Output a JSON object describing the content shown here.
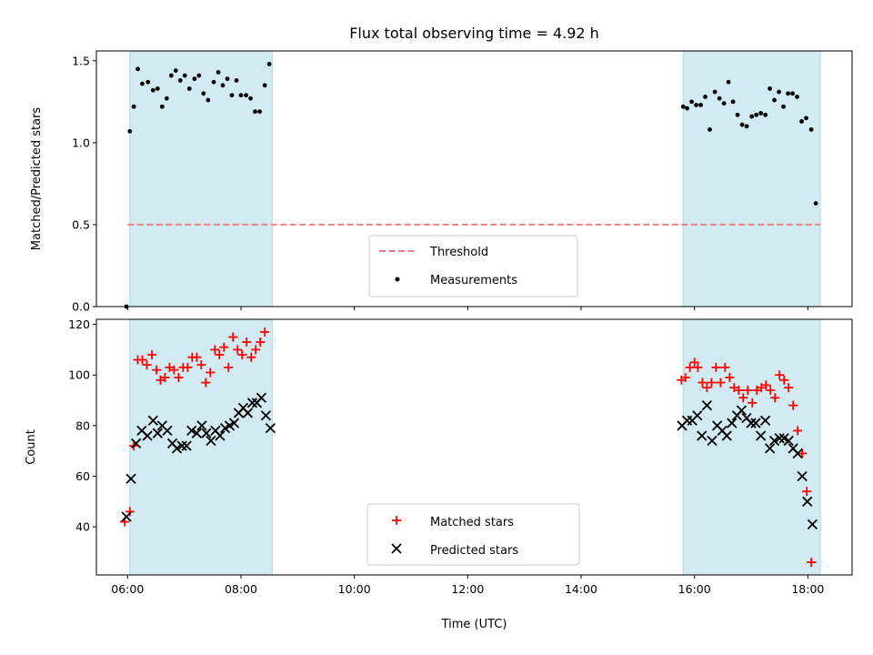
{
  "chart_data": [
    {
      "type": "scatter",
      "title": "Flux total observing time = 4.92 h",
      "ylabel": "Matched/Predicted stars",
      "xlabel": "",
      "x_unit": "hours (UTC)",
      "xlim": [
        5.45,
        18.78
      ],
      "ylim": [
        0,
        1.56
      ],
      "yticks": [
        0.0,
        0.5,
        1.0,
        1.5
      ],
      "ytick_labels": [
        "0.0",
        "0.5",
        "1.0",
        "1.5"
      ],
      "shaded_intervals": [
        [
          6.04,
          8.55
        ],
        [
          15.8,
          18.22
        ]
      ],
      "shade_color": "#add8e6",
      "threshold": {
        "name": "Threshold",
        "value": 0.5,
        "x_range": [
          6.0,
          18.22
        ],
        "color": "#f08080",
        "style": "dashed"
      },
      "series": [
        {
          "name": "Measurements",
          "color": "#000000",
          "marker": "dot",
          "points": [
            [
              5.98,
              0.0
            ],
            [
              6.04,
              1.07
            ],
            [
              6.11,
              1.22
            ],
            [
              6.18,
              1.45
            ],
            [
              6.26,
              1.36
            ],
            [
              6.36,
              1.37
            ],
            [
              6.45,
              1.32
            ],
            [
              6.53,
              1.33
            ],
            [
              6.61,
              1.22
            ],
            [
              6.69,
              1.27
            ],
            [
              6.77,
              1.41
            ],
            [
              6.85,
              1.44
            ],
            [
              6.93,
              1.38
            ],
            [
              7.01,
              1.41
            ],
            [
              7.09,
              1.33
            ],
            [
              7.18,
              1.39
            ],
            [
              7.26,
              1.41
            ],
            [
              7.34,
              1.3
            ],
            [
              7.42,
              1.26
            ],
            [
              7.52,
              1.37
            ],
            [
              7.6,
              1.43
            ],
            [
              7.68,
              1.35
            ],
            [
              7.76,
              1.39
            ],
            [
              7.84,
              1.29
            ],
            [
              7.92,
              1.38
            ],
            [
              8.0,
              1.29
            ],
            [
              8.09,
              1.29
            ],
            [
              8.17,
              1.27
            ],
            [
              8.25,
              1.19
            ],
            [
              8.33,
              1.19
            ],
            [
              8.42,
              1.35
            ],
            [
              8.5,
              1.48
            ],
            [
              15.8,
              1.22
            ],
            [
              15.87,
              1.21
            ],
            [
              15.95,
              1.25
            ],
            [
              16.03,
              1.23
            ],
            [
              16.11,
              1.23
            ],
            [
              16.19,
              1.28
            ],
            [
              16.27,
              1.08
            ],
            [
              16.36,
              1.31
            ],
            [
              16.44,
              1.27
            ],
            [
              16.52,
              1.24
            ],
            [
              16.6,
              1.37
            ],
            [
              16.68,
              1.25
            ],
            [
              16.76,
              1.17
            ],
            [
              16.84,
              1.11
            ],
            [
              16.92,
              1.1
            ],
            [
              17.01,
              1.16
            ],
            [
              17.09,
              1.17
            ],
            [
              17.17,
              1.18
            ],
            [
              17.25,
              1.17
            ],
            [
              17.33,
              1.33
            ],
            [
              17.41,
              1.26
            ],
            [
              17.49,
              1.31
            ],
            [
              17.57,
              1.22
            ],
            [
              17.65,
              1.3
            ],
            [
              17.73,
              1.3
            ],
            [
              17.81,
              1.28
            ],
            [
              17.89,
              1.13
            ],
            [
              17.97,
              1.15
            ],
            [
              18.06,
              1.08
            ],
            [
              18.14,
              0.63
            ]
          ]
        }
      ],
      "legend": {
        "placement": "lower center",
        "entries": [
          "Threshold",
          "Measurements"
        ]
      }
    },
    {
      "type": "scatter",
      "title": "",
      "ylabel": "Count",
      "xlabel": "Time (UTC)",
      "x_unit": "hours (UTC)",
      "xlim": [
        5.45,
        18.78
      ],
      "ylim": [
        21,
        122
      ],
      "yticks": [
        40,
        60,
        80,
        100,
        120
      ],
      "ytick_labels": [
        "40",
        "60",
        "80",
        "100",
        "120"
      ],
      "xticks": [
        6,
        8,
        10,
        12,
        14,
        16,
        18
      ],
      "xtick_labels": [
        "06:00",
        "08:00",
        "10:00",
        "12:00",
        "14:00",
        "16:00",
        "18:00"
      ],
      "shaded_intervals": [
        [
          6.04,
          8.55
        ],
        [
          15.8,
          18.22
        ]
      ],
      "shade_color": "#add8e6",
      "series": [
        {
          "name": "Matched stars",
          "color": "#ff0000",
          "marker": "plus",
          "points": [
            [
              5.95,
              42
            ],
            [
              6.04,
              46
            ],
            [
              6.11,
              72
            ],
            [
              6.18,
              106
            ],
            [
              6.26,
              106
            ],
            [
              6.34,
              104
            ],
            [
              6.43,
              108
            ],
            [
              6.51,
              102
            ],
            [
              6.58,
              98
            ],
            [
              6.66,
              99
            ],
            [
              6.74,
              103
            ],
            [
              6.82,
              102
            ],
            [
              6.9,
              99
            ],
            [
              6.98,
              103
            ],
            [
              7.06,
              103
            ],
            [
              7.14,
              107
            ],
            [
              7.22,
              107
            ],
            [
              7.3,
              104
            ],
            [
              7.38,
              97
            ],
            [
              7.46,
              101
            ],
            [
              7.54,
              110
            ],
            [
              7.62,
              108
            ],
            [
              7.7,
              111
            ],
            [
              7.78,
              103
            ],
            [
              7.86,
              115
            ],
            [
              7.94,
              110
            ],
            [
              8.02,
              108
            ],
            [
              8.1,
              113
            ],
            [
              8.18,
              107
            ],
            [
              8.26,
              110
            ],
            [
              8.34,
              113
            ],
            [
              8.42,
              117
            ],
            [
              15.77,
              98
            ],
            [
              15.84,
              99
            ],
            [
              15.92,
              103
            ],
            [
              16.0,
              105
            ],
            [
              16.06,
              103
            ],
            [
              16.14,
              97
            ],
            [
              16.22,
              95
            ],
            [
              16.3,
              97
            ],
            [
              16.38,
              103
            ],
            [
              16.46,
              97
            ],
            [
              16.54,
              103
            ],
            [
              16.62,
              99
            ],
            [
              16.7,
              95
            ],
            [
              16.78,
              94
            ],
            [
              16.86,
              91
            ],
            [
              16.94,
              94
            ],
            [
              17.02,
              89
            ],
            [
              17.1,
              94
            ],
            [
              17.18,
              95
            ],
            [
              17.26,
              96
            ],
            [
              17.34,
              94
            ],
            [
              17.42,
              91
            ],
            [
              17.5,
              100
            ],
            [
              17.58,
              98
            ],
            [
              17.66,
              95
            ],
            [
              17.74,
              88
            ],
            [
              17.82,
              78
            ],
            [
              17.9,
              69
            ],
            [
              17.98,
              54
            ],
            [
              18.06,
              26
            ]
          ]
        },
        {
          "name": "Predicted stars",
          "color": "#000000",
          "marker": "x",
          "points": [
            [
              5.98,
              44
            ],
            [
              6.06,
              59
            ],
            [
              6.15,
              73
            ],
            [
              6.25,
              78
            ],
            [
              6.35,
              76
            ],
            [
              6.45,
              82
            ],
            [
              6.53,
              77
            ],
            [
              6.61,
              80
            ],
            [
              6.7,
              78
            ],
            [
              6.79,
              73
            ],
            [
              6.87,
              71
            ],
            [
              6.96,
              72
            ],
            [
              7.04,
              72
            ],
            [
              7.13,
              78
            ],
            [
              7.22,
              77
            ],
            [
              7.31,
              80
            ],
            [
              7.39,
              77
            ],
            [
              7.47,
              74
            ],
            [
              7.55,
              78
            ],
            [
              7.63,
              76
            ],
            [
              7.72,
              79
            ],
            [
              7.8,
              80
            ],
            [
              7.88,
              81
            ],
            [
              7.96,
              85
            ],
            [
              8.04,
              87
            ],
            [
              8.12,
              85
            ],
            [
              8.2,
              89
            ],
            [
              8.28,
              89
            ],
            [
              8.36,
              91
            ],
            [
              8.44,
              84
            ],
            [
              8.52,
              79
            ],
            [
              15.78,
              80
            ],
            [
              15.87,
              82
            ],
            [
              15.96,
              82
            ],
            [
              16.05,
              84
            ],
            [
              16.13,
              76
            ],
            [
              16.22,
              88
            ],
            [
              16.31,
              74
            ],
            [
              16.4,
              80
            ],
            [
              16.49,
              78
            ],
            [
              16.57,
              76
            ],
            [
              16.66,
              81
            ],
            [
              16.75,
              84
            ],
            [
              16.83,
              86
            ],
            [
              16.92,
              83
            ],
            [
              17.0,
              81
            ],
            [
              17.08,
              81
            ],
            [
              17.17,
              76
            ],
            [
              17.25,
              82
            ],
            [
              17.33,
              71
            ],
            [
              17.41,
              74
            ],
            [
              17.5,
              75
            ],
            [
              17.58,
              75
            ],
            [
              17.66,
              74
            ],
            [
              17.74,
              71
            ],
            [
              17.82,
              69
            ],
            [
              17.9,
              60
            ],
            [
              17.99,
              50
            ],
            [
              18.08,
              41
            ]
          ]
        }
      ],
      "legend": {
        "placement": "lower center",
        "entries": [
          "Matched stars",
          "Predicted stars"
        ]
      }
    }
  ]
}
